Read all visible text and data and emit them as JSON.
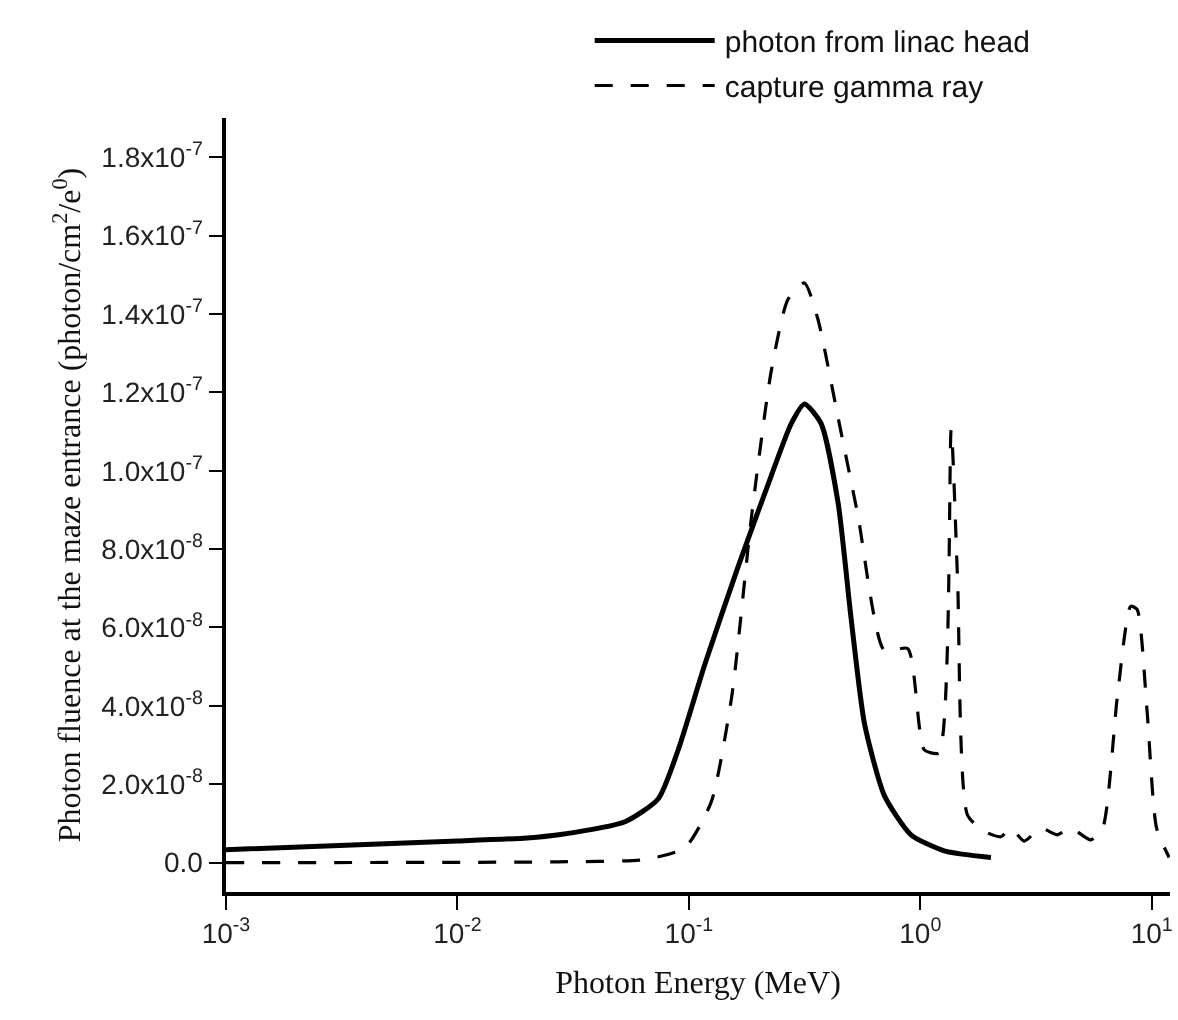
{
  "chart_data": {
    "type": "line",
    "xlabel": "Photon Energy (MeV)",
    "ylabel": "Photon fluence at the maze entrance (photon/cm$^{2}$/e$^{0}$)",
    "log": "x",
    "xlim": [
      0.001,
      12
    ],
    "ylim": [
      -7.5e-09,
      1.9e-07
    ],
    "xticks": [
      {
        "value": 0.001,
        "label": "10$^{-3}$"
      },
      {
        "value": 0.01,
        "label": "10$^{-2}$"
      },
      {
        "value": 0.1,
        "label": "10$^{-1}$"
      },
      {
        "value": 1,
        "label": "10$^{0}$"
      },
      {
        "value": 10,
        "label": "10$^{1}$"
      }
    ],
    "yticks": [
      {
        "value": 0,
        "label": "0.0"
      },
      {
        "value": 2e-08,
        "label": "2.0x10$^{-8}$"
      },
      {
        "value": 4e-08,
        "label": "4.0x10$^{-8}$"
      },
      {
        "value": 6e-08,
        "label": "6.0x10$^{-8}$"
      },
      {
        "value": 8e-08,
        "label": "8.0x10$^{-8}$"
      },
      {
        "value": 1e-07,
        "label": "1.0x10$^{-7}$"
      },
      {
        "value": 1.2e-07,
        "label": "1.2x10$^{-7}$"
      },
      {
        "value": 1.4e-07,
        "label": "1.4x10$^{-7}$"
      },
      {
        "value": 1.6e-07,
        "label": "1.6x10$^{-7}$"
      },
      {
        "value": 1.8e-07,
        "label": "1.8x10$^{-7}$"
      }
    ],
    "legend": "top right",
    "marker": "none",
    "series": [
      {
        "name": "photon from linac head",
        "color": "#000000",
        "line_style": "solid",
        "x": [
          0.001,
          0.01,
          0.02,
          0.0274,
          0.0533,
          0.0738,
          0.09,
          0.117,
          0.163,
          0.227,
          0.277,
          0.316,
          0.373,
          0.441,
          0.503,
          0.574,
          0.7,
          0.912,
          1.27,
          2.02
        ],
        "values": [
          3.3e-09,
          5.5e-09,
          6.3e-09,
          7.1e-09,
          1.05e-08,
          1.63e-08,
          2.88e-08,
          5.04e-08,
          7.54e-08,
          9.87e-08,
          1.12e-07,
          1.17e-07,
          1.12e-07,
          9.2e-08,
          6.21e-08,
          3.55e-08,
          1.71e-08,
          7.1e-09,
          3e-09,
          1.3e-09
        ]
      },
      {
        "name": "capture gamma ray",
        "color": "#000000",
        "line_style": "dashed",
        "x": [
          0.001,
          0.0274,
          0.0646,
          0.0962,
          0.125,
          0.153,
          0.187,
          0.227,
          0.268,
          0.316,
          0.361,
          0.441,
          0.537,
          0.7,
          0.883,
          1.04,
          1.205,
          1.36,
          1.45,
          1.6,
          1.89,
          2.23,
          2.46,
          2.81,
          3.32,
          3.91,
          4.47,
          5.45,
          6.14,
          7.1,
          8.11,
          8.65,
          9.55,
          10.5,
          11.9
        ],
        "values": [
          0,
          2e-10,
          8e-10,
          3.8e-09,
          1.55e-08,
          4.21e-08,
          8.88e-08,
          1.254e-07,
          1.437e-07,
          1.479e-07,
          1.387e-07,
          1.137e-07,
          8.88e-08,
          5.41e-08,
          5.46e-08,
          2.88e-08,
          2.8e-08,
          1.104e-07,
          7.2e-08,
          1.21e-08,
          8e-09,
          6.6e-09,
          8.8e-09,
          5.5e-09,
          8.8e-09,
          7.1e-09,
          8.8e-09,
          5.8e-09,
          8.8e-09,
          4.21e-08,
          6.54e-08,
          6.46e-08,
          3.88e-08,
          8.8e-09,
          1.3e-09
        ]
      }
    ]
  }
}
